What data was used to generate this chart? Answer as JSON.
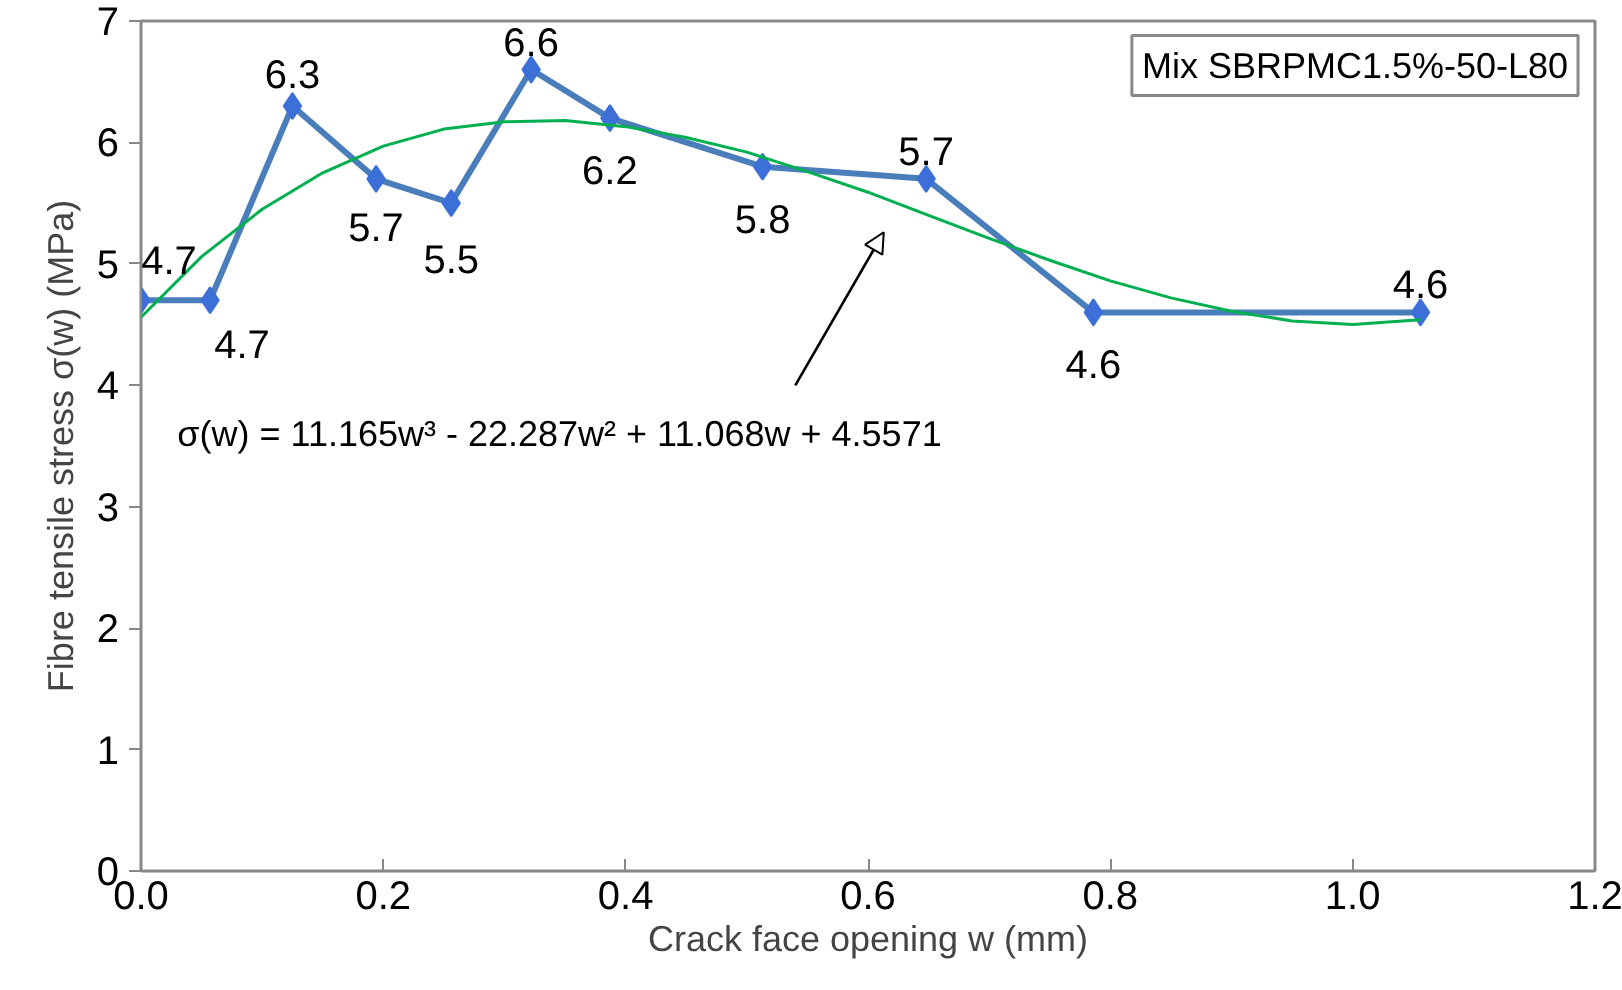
{
  "chart_data": {
    "type": "line",
    "xlabel": "Crack face opening w (mm)",
    "ylabel": "Fibre tensile stress σ(w) (MPa)",
    "xlim": [
      0,
      1.2
    ],
    "ylim": [
      0,
      7
    ],
    "xticks": [
      {
        "value": 0,
        "label": "0.0"
      },
      {
        "value": 0.2,
        "label": "0.2"
      },
      {
        "value": 0.4,
        "label": "0.4"
      },
      {
        "value": 0.6,
        "label": "0.6"
      },
      {
        "value": 0.8,
        "label": "0.8"
      },
      {
        "value": 1.0,
        "label": "1.0"
      },
      {
        "value": 1.2,
        "label": "1.2"
      }
    ],
    "yticks": [
      0,
      1,
      2,
      3,
      4,
      5,
      6,
      7
    ],
    "grid": false,
    "series": [
      {
        "color": "#4a7ebb",
        "marker": "diamond",
        "x": [
          0,
          0.057,
          0.125,
          0.194,
          0.256,
          0.322,
          0.387,
          0.513,
          0.648,
          0.786,
          1.056
        ],
        "values": [
          4.7,
          4.7,
          6.3,
          5.7,
          5.5,
          6.6,
          6.2,
          5.8,
          5.7,
          4.6,
          4.6
        ],
        "value_labels": [
          "4.7",
          "4.7",
          "6.3",
          "5.7",
          "5.5",
          "6.6",
          "6.2",
          "5.8",
          "5.7",
          "4.6",
          "4.6"
        ]
      },
      {
        "type": "line",
        "color": "#00b050",
        "marker": "none",
        "x": [
          0,
          0.05,
          0.1,
          0.15,
          0.2,
          0.25,
          0.3,
          0.35,
          0.4,
          0.45,
          0.5,
          0.55,
          0.6,
          0.65,
          0.7,
          0.75,
          0.8,
          0.85,
          0.9,
          0.95,
          1.0,
          1.056
        ],
        "values": [
          4.56,
          5.06,
          5.45,
          5.75,
          5.97,
          6.11,
          6.17,
          6.18,
          6.13,
          6.04,
          5.92,
          5.76,
          5.59,
          5.4,
          5.21,
          5.03,
          4.86,
          4.72,
          4.61,
          4.53,
          4.5,
          4.54
        ]
      }
    ],
    "annotations": [
      "σ(w) = 11.165w³ - 22.287w² + 11.068w + 4.5571",
      "Mix SBRPMC1.5%-50-L80"
    ]
  }
}
